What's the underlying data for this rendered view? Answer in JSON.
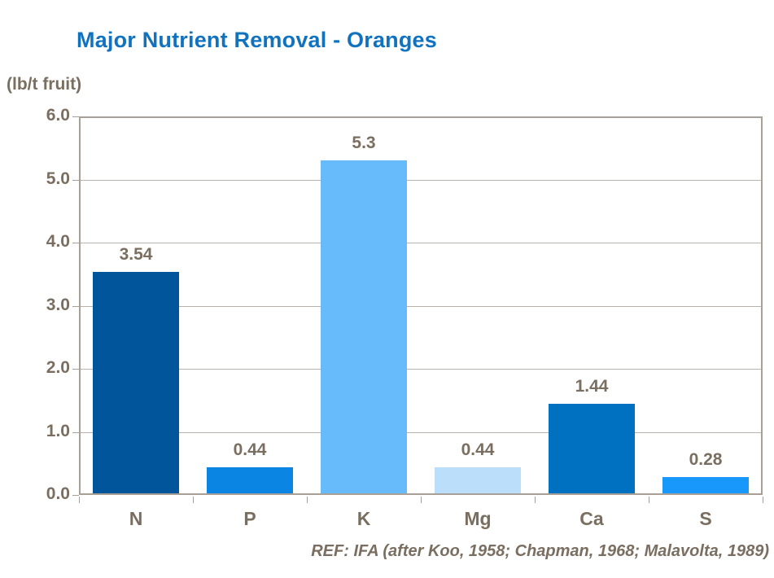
{
  "header": {
    "title": "Major Nutrient Removal - Oranges"
  },
  "chart_data": {
    "type": "bar",
    "title": "Major Nutrient Removal - Oranges",
    "unit_label": "(lb/t fruit)",
    "categories": [
      "N",
      "P",
      "K",
      "Mg",
      "Ca",
      "S"
    ],
    "values": [
      3.54,
      0.44,
      5.3,
      0.44,
      1.44,
      0.28
    ],
    "value_labels": [
      "3.54",
      "0.44",
      "5.3",
      "0.44",
      "1.44",
      "0.28"
    ],
    "bar_colors": [
      "#00559b",
      "#0a85e4",
      "#68bbfa",
      "#bbdefb",
      "#0071c0",
      "#1898fa"
    ],
    "xlabel": "",
    "ylabel": "(lb/t fruit)",
    "ylim": [
      0,
      6
    ],
    "ytick_step": 1.0,
    "ytick_labels": [
      "0.0",
      "1.0",
      "2.0",
      "3.0",
      "4.0",
      "5.0",
      "6.0"
    ],
    "grid": true,
    "legend_position": "none"
  },
  "footer": {
    "ref": "REF: IFA (after Koo, 1958; Chapman, 1968; Malavolta, 1989)"
  },
  "colors": {
    "title_text": "#1173c0",
    "axis_text": "#7a6e60",
    "plot_border": "#a89f96",
    "gridline": "#bab2aa",
    "background": "#ffffff"
  }
}
